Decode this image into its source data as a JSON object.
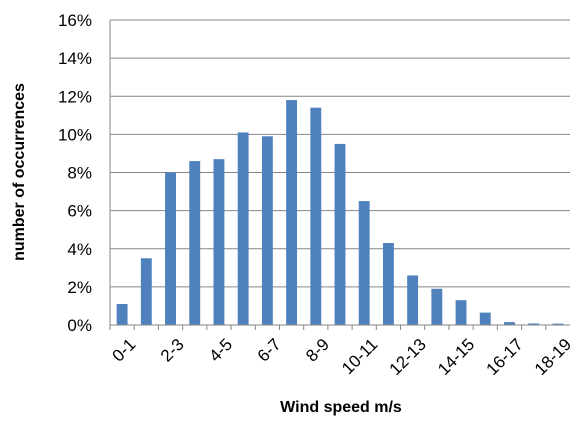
{
  "chart_data": {
    "type": "bar",
    "xlabel": "Wind speed m/s",
    "ylabel": "number of occurrences",
    "ylim": [
      0,
      16
    ],
    "y_tick_values": [
      0,
      2,
      4,
      6,
      8,
      10,
      12,
      14,
      16
    ],
    "y_tick_labels": [
      "0%",
      "2%",
      "4%",
      "6%",
      "8%",
      "10%",
      "12%",
      "14%",
      "16%"
    ],
    "categories": [
      "0-1",
      "1-2",
      "2-3",
      "3-4",
      "4-5",
      "5-6",
      "6-7",
      "7-8",
      "8-9",
      "9-10",
      "10-11",
      "11-12",
      "12-13",
      "13-14",
      "14-15",
      "15-16",
      "16-17",
      "17-18",
      "18-19"
    ],
    "x_tick_labels_shown": [
      "0-1",
      "",
      "2-3",
      "",
      "4-5",
      "",
      "6-7",
      "",
      "8-9",
      "",
      "10-11",
      "",
      "12-13",
      "",
      "14-15",
      "",
      "16-17",
      "",
      "18-19"
    ],
    "values": [
      1.1,
      3.5,
      8.0,
      8.6,
      8.7,
      10.1,
      9.9,
      11.8,
      11.4,
      9.5,
      6.5,
      4.3,
      2.6,
      1.9,
      1.3,
      0.65,
      0.15,
      0.08,
      0.07
    ],
    "grid": "horizontal",
    "bar_color": "#4F81BD"
  }
}
